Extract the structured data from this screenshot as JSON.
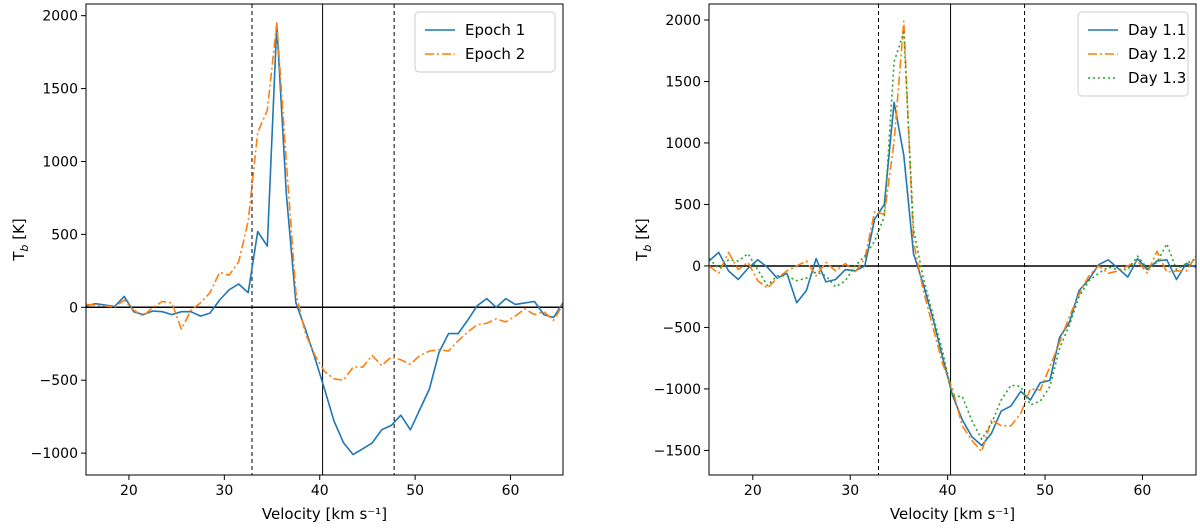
{
  "chart_data": [
    {
      "type": "line",
      "xlabel": "Velocity [km s⁻¹]",
      "ylabel": "T_b [K]",
      "xlim": [
        15.5,
        65.5
      ],
      "ylim": [
        -1150,
        2080
      ],
      "xticks": [
        20,
        30,
        40,
        50,
        60
      ],
      "xtick_labels": [
        "20",
        "30",
        "40",
        "50",
        "60"
      ],
      "yticks": [
        -1000,
        -500,
        0,
        500,
        1000,
        1500,
        2000
      ],
      "ytick_labels": [
        "−1000",
        "−500",
        "0",
        "500",
        "1000",
        "1500",
        "2000"
      ],
      "grid": false,
      "legend_position": "top-right",
      "vlines": [
        {
          "x": 32.9,
          "style": "dashed"
        },
        {
          "x": 40.3,
          "style": "solid"
        },
        {
          "x": 47.8,
          "style": "dashed"
        }
      ],
      "hlines": [
        {
          "y": 0,
          "style": "solid"
        }
      ],
      "series": [
        {
          "name": "Epoch 1",
          "color": "#1f77b4",
          "style": "solid",
          "x": [
            15.5,
            16.5,
            17.5,
            18.5,
            19.5,
            20.5,
            21.5,
            22.5,
            23.5,
            24.5,
            25.5,
            26.5,
            27.5,
            28.5,
            29.5,
            30.5,
            31.5,
            32.5,
            33.5,
            34.5,
            35.5,
            36.5,
            37.5,
            38.5,
            39.5,
            40.5,
            41.5,
            42.5,
            43.5,
            44.5,
            45.5,
            46.5,
            47.5,
            48.5,
            49.5,
            50.5,
            51.5,
            52.5,
            53.5,
            54.5,
            55.5,
            56.5,
            57.5,
            58.5,
            59.5,
            60.5,
            61.5,
            62.5,
            63.5,
            64.5,
            65.5
          ],
          "values": [
            10,
            25,
            15,
            5,
            75,
            -30,
            -50,
            -25,
            -30,
            -50,
            -30,
            -30,
            -60,
            -40,
            50,
            120,
            160,
            100,
            520,
            420,
            1940,
            780,
            30,
            -150,
            -350,
            -560,
            -780,
            -930,
            -1010,
            -970,
            -930,
            -840,
            -810,
            -740,
            -840,
            -700,
            -560,
            -310,
            -180,
            -180,
            -90,
            10,
            60,
            0,
            60,
            20,
            30,
            40,
            -50,
            -70,
            30
          ]
        },
        {
          "name": "Epoch 2",
          "color": "#ff7f0e",
          "style": "dashdot",
          "x": [
            15.5,
            16.5,
            17.5,
            18.5,
            19.5,
            20.5,
            21.5,
            22.5,
            23.5,
            24.5,
            25.5,
            26.5,
            27.5,
            28.5,
            29.5,
            30.5,
            31.5,
            32.5,
            33.5,
            34.5,
            35.5,
            36.5,
            37.5,
            38.5,
            39.5,
            40.5,
            41.5,
            42.5,
            43.5,
            44.5,
            45.5,
            46.5,
            47.5,
            48.5,
            49.5,
            50.5,
            51.5,
            52.5,
            53.5,
            54.5,
            55.5,
            56.5,
            57.5,
            58.5,
            59.5,
            60.5,
            61.5,
            62.5,
            63.5,
            64.5,
            65.5
          ],
          "values": [
            20,
            15,
            10,
            0,
            50,
            -20,
            -60,
            0,
            40,
            30,
            -150,
            -20,
            30,
            100,
            240,
            220,
            310,
            590,
            1200,
            1350,
            1950,
            1000,
            100,
            -180,
            -330,
            -440,
            -490,
            -500,
            -410,
            -410,
            -330,
            -400,
            -340,
            -360,
            -390,
            -330,
            -300,
            -290,
            -300,
            -230,
            -170,
            -120,
            -110,
            -80,
            -100,
            -60,
            -10,
            -50,
            -30,
            -90,
            20
          ]
        }
      ]
    },
    {
      "type": "line",
      "xlabel": "Velocity [km s⁻¹]",
      "ylabel": "T_b [K]",
      "xlim": [
        15.5,
        65.5
      ],
      "ylim": [
        -1700,
        2130
      ],
      "xticks": [
        20,
        30,
        40,
        50,
        60
      ],
      "xtick_labels": [
        "20",
        "30",
        "40",
        "50",
        "60"
      ],
      "yticks": [
        -1500,
        -1000,
        -500,
        0,
        500,
        1000,
        1500,
        2000
      ],
      "ytick_labels": [
        "−1500",
        "−1000",
        "−500",
        "0",
        "500",
        "1000",
        "1500",
        "2000"
      ],
      "grid": false,
      "legend_position": "top-right",
      "vlines": [
        {
          "x": 32.9,
          "style": "dashed"
        },
        {
          "x": 40.3,
          "style": "solid"
        },
        {
          "x": 47.9,
          "style": "dashed"
        }
      ],
      "hlines": [
        {
          "y": 0,
          "style": "solid"
        }
      ],
      "series": [
        {
          "name": "Day 1.1",
          "color": "#1f77b4",
          "style": "solid",
          "x": [
            15.5,
            16.5,
            17.5,
            18.5,
            19.5,
            20.5,
            21.5,
            22.5,
            23.5,
            24.5,
            25.5,
            26.5,
            27.5,
            28.5,
            29.5,
            30.5,
            31.5,
            32.5,
            33.5,
            34.5,
            35.5,
            36.5,
            37.5,
            38.5,
            39.5,
            40.5,
            41.5,
            42.5,
            43.5,
            44.5,
            45.5,
            46.5,
            47.5,
            48.5,
            49.5,
            50.5,
            51.5,
            52.5,
            53.5,
            54.5,
            55.5,
            56.5,
            57.5,
            58.5,
            59.5,
            60.5,
            61.5,
            62.5,
            63.5,
            64.5,
            65.5
          ],
          "values": [
            40,
            110,
            -40,
            -110,
            -20,
            50,
            -10,
            -100,
            -60,
            -300,
            -200,
            60,
            -130,
            -110,
            -30,
            -40,
            0,
            380,
            500,
            1330,
            900,
            100,
            -150,
            -430,
            -750,
            -1050,
            -1250,
            -1390,
            -1460,
            -1360,
            -1180,
            -1140,
            -1020,
            -1090,
            -950,
            -930,
            -580,
            -460,
            -200,
            -110,
            10,
            50,
            -20,
            -90,
            60,
            -30,
            40,
            50,
            -110,
            20,
            -10
          ]
        },
        {
          "name": "Day 1.2",
          "color": "#ff7f0e",
          "style": "dashdot",
          "x": [
            15.5,
            16.5,
            17.5,
            18.5,
            19.5,
            20.5,
            21.5,
            22.5,
            23.5,
            24.5,
            25.5,
            26.5,
            27.5,
            28.5,
            29.5,
            30.5,
            31.5,
            32.5,
            33.5,
            34.5,
            35.5,
            36.5,
            37.5,
            38.5,
            39.5,
            40.5,
            41.5,
            42.5,
            43.5,
            44.5,
            45.5,
            46.5,
            47.5,
            48.5,
            49.5,
            50.5,
            51.5,
            52.5,
            53.5,
            54.5,
            55.5,
            56.5,
            57.5,
            58.5,
            59.5,
            60.5,
            61.5,
            62.5,
            63.5,
            64.5,
            65.5
          ],
          "values": [
            0,
            -60,
            110,
            -30,
            30,
            -120,
            -180,
            -100,
            -40,
            0,
            40,
            -80,
            30,
            -40,
            20,
            -50,
            60,
            440,
            420,
            1010,
            1990,
            200,
            -200,
            -500,
            -800,
            -1000,
            -1300,
            -1420,
            -1510,
            -1250,
            -1300,
            -1300,
            -1200,
            -1000,
            -1010,
            -820,
            -620,
            -410,
            -230,
            -80,
            0,
            -60,
            -40,
            0,
            40,
            -60,
            120,
            -50,
            -40,
            -40,
            80
          ]
        },
        {
          "name": "Day 1.3",
          "color": "#2ca02c",
          "style": "dotted",
          "x": [
            15.5,
            16.5,
            17.5,
            18.5,
            19.5,
            20.5,
            21.5,
            22.5,
            23.5,
            24.5,
            25.5,
            26.5,
            27.5,
            28.5,
            29.5,
            30.5,
            31.5,
            32.5,
            33.5,
            34.5,
            35.5,
            36.5,
            37.5,
            38.5,
            39.5,
            40.5,
            41.5,
            42.5,
            43.5,
            44.5,
            45.5,
            46.5,
            47.5,
            48.5,
            49.5,
            50.5,
            51.5,
            52.5,
            53.5,
            54.5,
            55.5,
            56.5,
            57.5,
            58.5,
            59.5,
            60.5,
            61.5,
            62.5,
            63.5,
            64.5,
            65.5
          ],
          "values": [
            60,
            -20,
            50,
            40,
            100,
            -30,
            -160,
            -80,
            -80,
            -120,
            -100,
            -50,
            -80,
            -170,
            -120,
            0,
            80,
            200,
            400,
            1660,
            1900,
            300,
            -100,
            -400,
            -700,
            -1060,
            -1060,
            -1260,
            -1410,
            -1280,
            -1090,
            -970,
            -980,
            -1130,
            -1100,
            -980,
            -670,
            -480,
            -250,
            -120,
            -60,
            -10,
            -30,
            -30,
            80,
            -20,
            30,
            180,
            -30,
            20,
            60
          ]
        }
      ]
    }
  ]
}
